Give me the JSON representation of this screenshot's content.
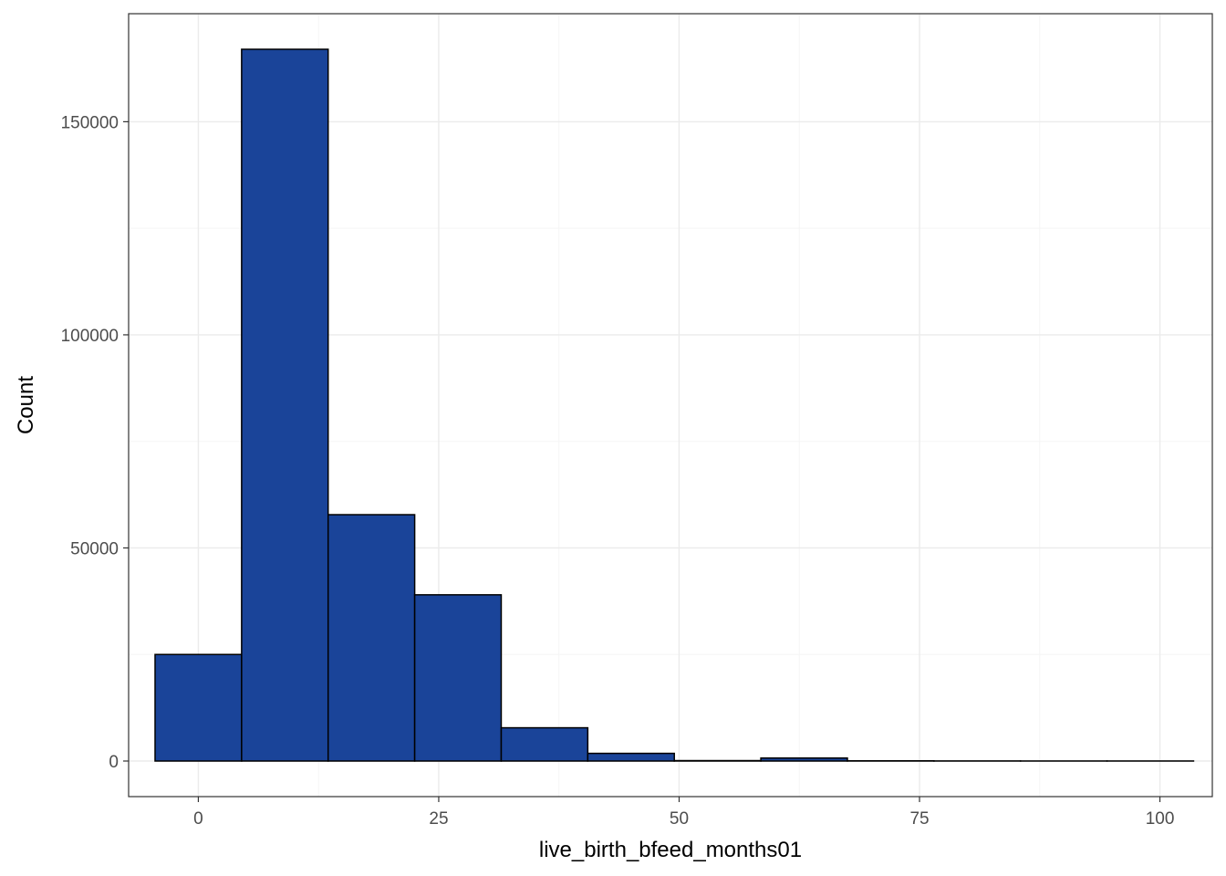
{
  "chart_data": {
    "type": "bar",
    "subtype": "histogram",
    "title": "",
    "xlabel": "live_birth_bfeed_months01",
    "ylabel": "Count",
    "xlim": [
      -7.25,
      105.45
    ],
    "ylim": [
      -8350,
      175350
    ],
    "x_ticks": [
      0,
      25,
      50,
      75,
      100
    ],
    "x_tick_labels": [
      "0",
      "25",
      "50",
      "75",
      "100"
    ],
    "y_ticks": [
      0,
      50000,
      100000,
      150000
    ],
    "y_tick_labels": [
      "0",
      "50000",
      "100000",
      "150000"
    ],
    "grid": true,
    "bins": [
      {
        "x0": -4.5,
        "x1": 4.5,
        "count": 25000
      },
      {
        "x0": 4.5,
        "x1": 13.5,
        "count": 167000
      },
      {
        "x0": 13.5,
        "x1": 22.5,
        "count": 57800
      },
      {
        "x0": 22.5,
        "x1": 31.5,
        "count": 39000
      },
      {
        "x0": 31.5,
        "x1": 40.5,
        "count": 7800
      },
      {
        "x0": 40.5,
        "x1": 49.5,
        "count": 1800
      },
      {
        "x0": 49.5,
        "x1": 58.5,
        "count": 100
      },
      {
        "x0": 58.5,
        "x1": 67.5,
        "count": 700
      },
      {
        "x0": 67.5,
        "x1": 76.5,
        "count": 50
      },
      {
        "x0": 76.5,
        "x1": 85.5,
        "count": 20
      },
      {
        "x0": 85.5,
        "x1": 94.5,
        "count": 10
      },
      {
        "x0": 94.5,
        "x1": 103.5,
        "count": 10
      }
    ],
    "colors": {
      "fill": "#1a4499",
      "outline": "#000000",
      "grid_major": "#ebebeb",
      "grid_minor": "#f5f5f5",
      "panel_border": "#333333",
      "tick_label": "#4d4d4d"
    }
  }
}
